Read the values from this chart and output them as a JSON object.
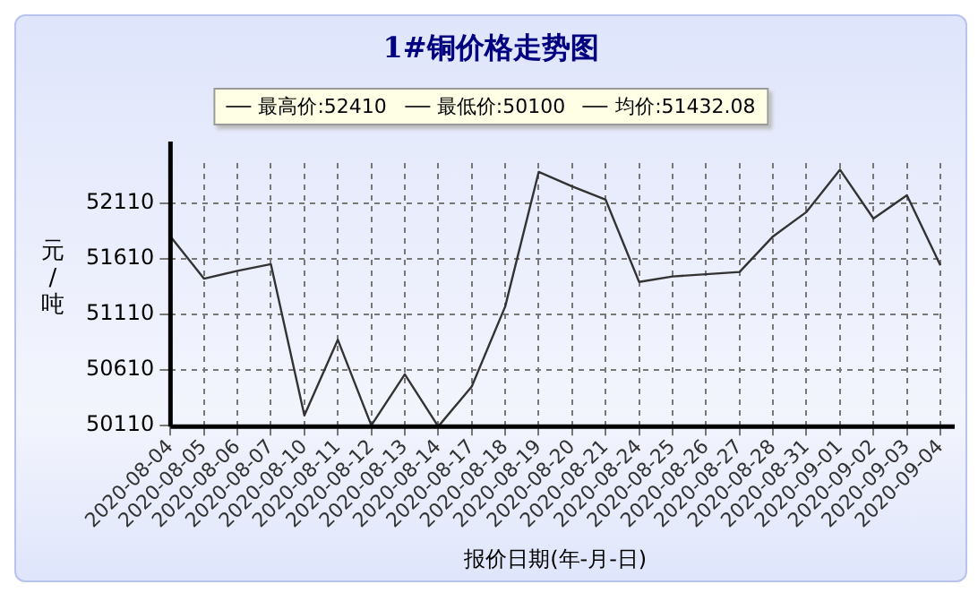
{
  "chart_data": {
    "type": "line",
    "title": "1#铜价格走势图",
    "xlabel": "报价日期(年-月-日)",
    "ylabel": "元/吨",
    "annotations": [
      "最高价:52410",
      "最低价:50100",
      "均价:51432.08"
    ],
    "categories": [
      "2020-08-04",
      "2020-08-05",
      "2020-08-06",
      "2020-08-07",
      "2020-08-10",
      "2020-08-11",
      "2020-08-12",
      "2020-08-13",
      "2020-08-14",
      "2020-08-17",
      "2020-08-18",
      "2020-08-19",
      "2020-08-20",
      "2020-08-21",
      "2020-08-24",
      "2020-08-25",
      "2020-08-26",
      "2020-08-27",
      "2020-08-28",
      "2020-08-31",
      "2020-09-01",
      "2020-09-02",
      "2020-09-03",
      "2020-09-04"
    ],
    "series": [
      {
        "color": "#333333",
        "values": [
          51810,
          51430,
          51500,
          51560,
          50200,
          50880,
          50110,
          50570,
          50100,
          50460,
          51180,
          52390,
          52260,
          52140,
          51400,
          51450,
          51470,
          51490,
          51810,
          52030,
          52410,
          51970,
          52180,
          51550
        ]
      }
    ],
    "ylim": [
      50100,
      52470
    ],
    "yticks": [
      50110,
      50610,
      51110,
      51610,
      52110
    ],
    "grid": true,
    "marker": "none",
    "line_style": "solid"
  }
}
